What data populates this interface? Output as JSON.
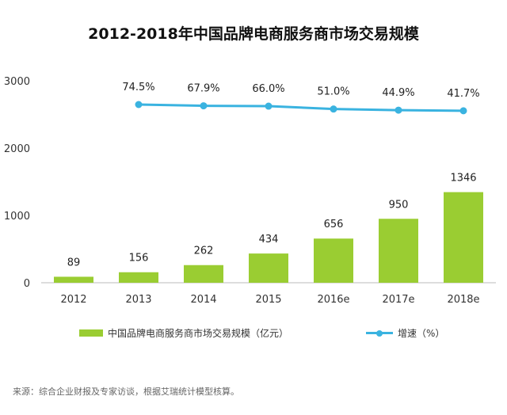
{
  "chart_data": {
    "type": "bar",
    "title": "2012-2018年中国品牌电商服务商市场交易规模",
    "categories": [
      "2012",
      "2013",
      "2014",
      "2015",
      "2016e",
      "2017e",
      "2018e"
    ],
    "series": [
      {
        "name": "中国品牌电商服务商市场交易规模（亿元）",
        "type": "bar",
        "color": "#9ACD32",
        "values": [
          89,
          156,
          262,
          434,
          656,
          950,
          1346
        ],
        "labels": [
          "89",
          "156",
          "262",
          "434",
          "656",
          "950",
          "1346"
        ]
      },
      {
        "name": "增速（%）",
        "type": "line",
        "color": "#3AB3E0",
        "values": [
          null,
          74.5,
          67.9,
          66.0,
          51.0,
          44.9,
          41.7
        ],
        "labels": [
          "",
          "74.5%",
          "67.9%",
          "66.0%",
          "51.0%",
          "44.9%",
          "41.7%"
        ]
      }
    ],
    "y_ticks": [
      "0",
      "1000",
      "2000",
      "3000"
    ],
    "ylim": [
      0,
      3000
    ],
    "grid": false,
    "legend": "bottom"
  },
  "source": "来源：综合企业财报及专家访谈，根据艾瑞统计模型核算。"
}
